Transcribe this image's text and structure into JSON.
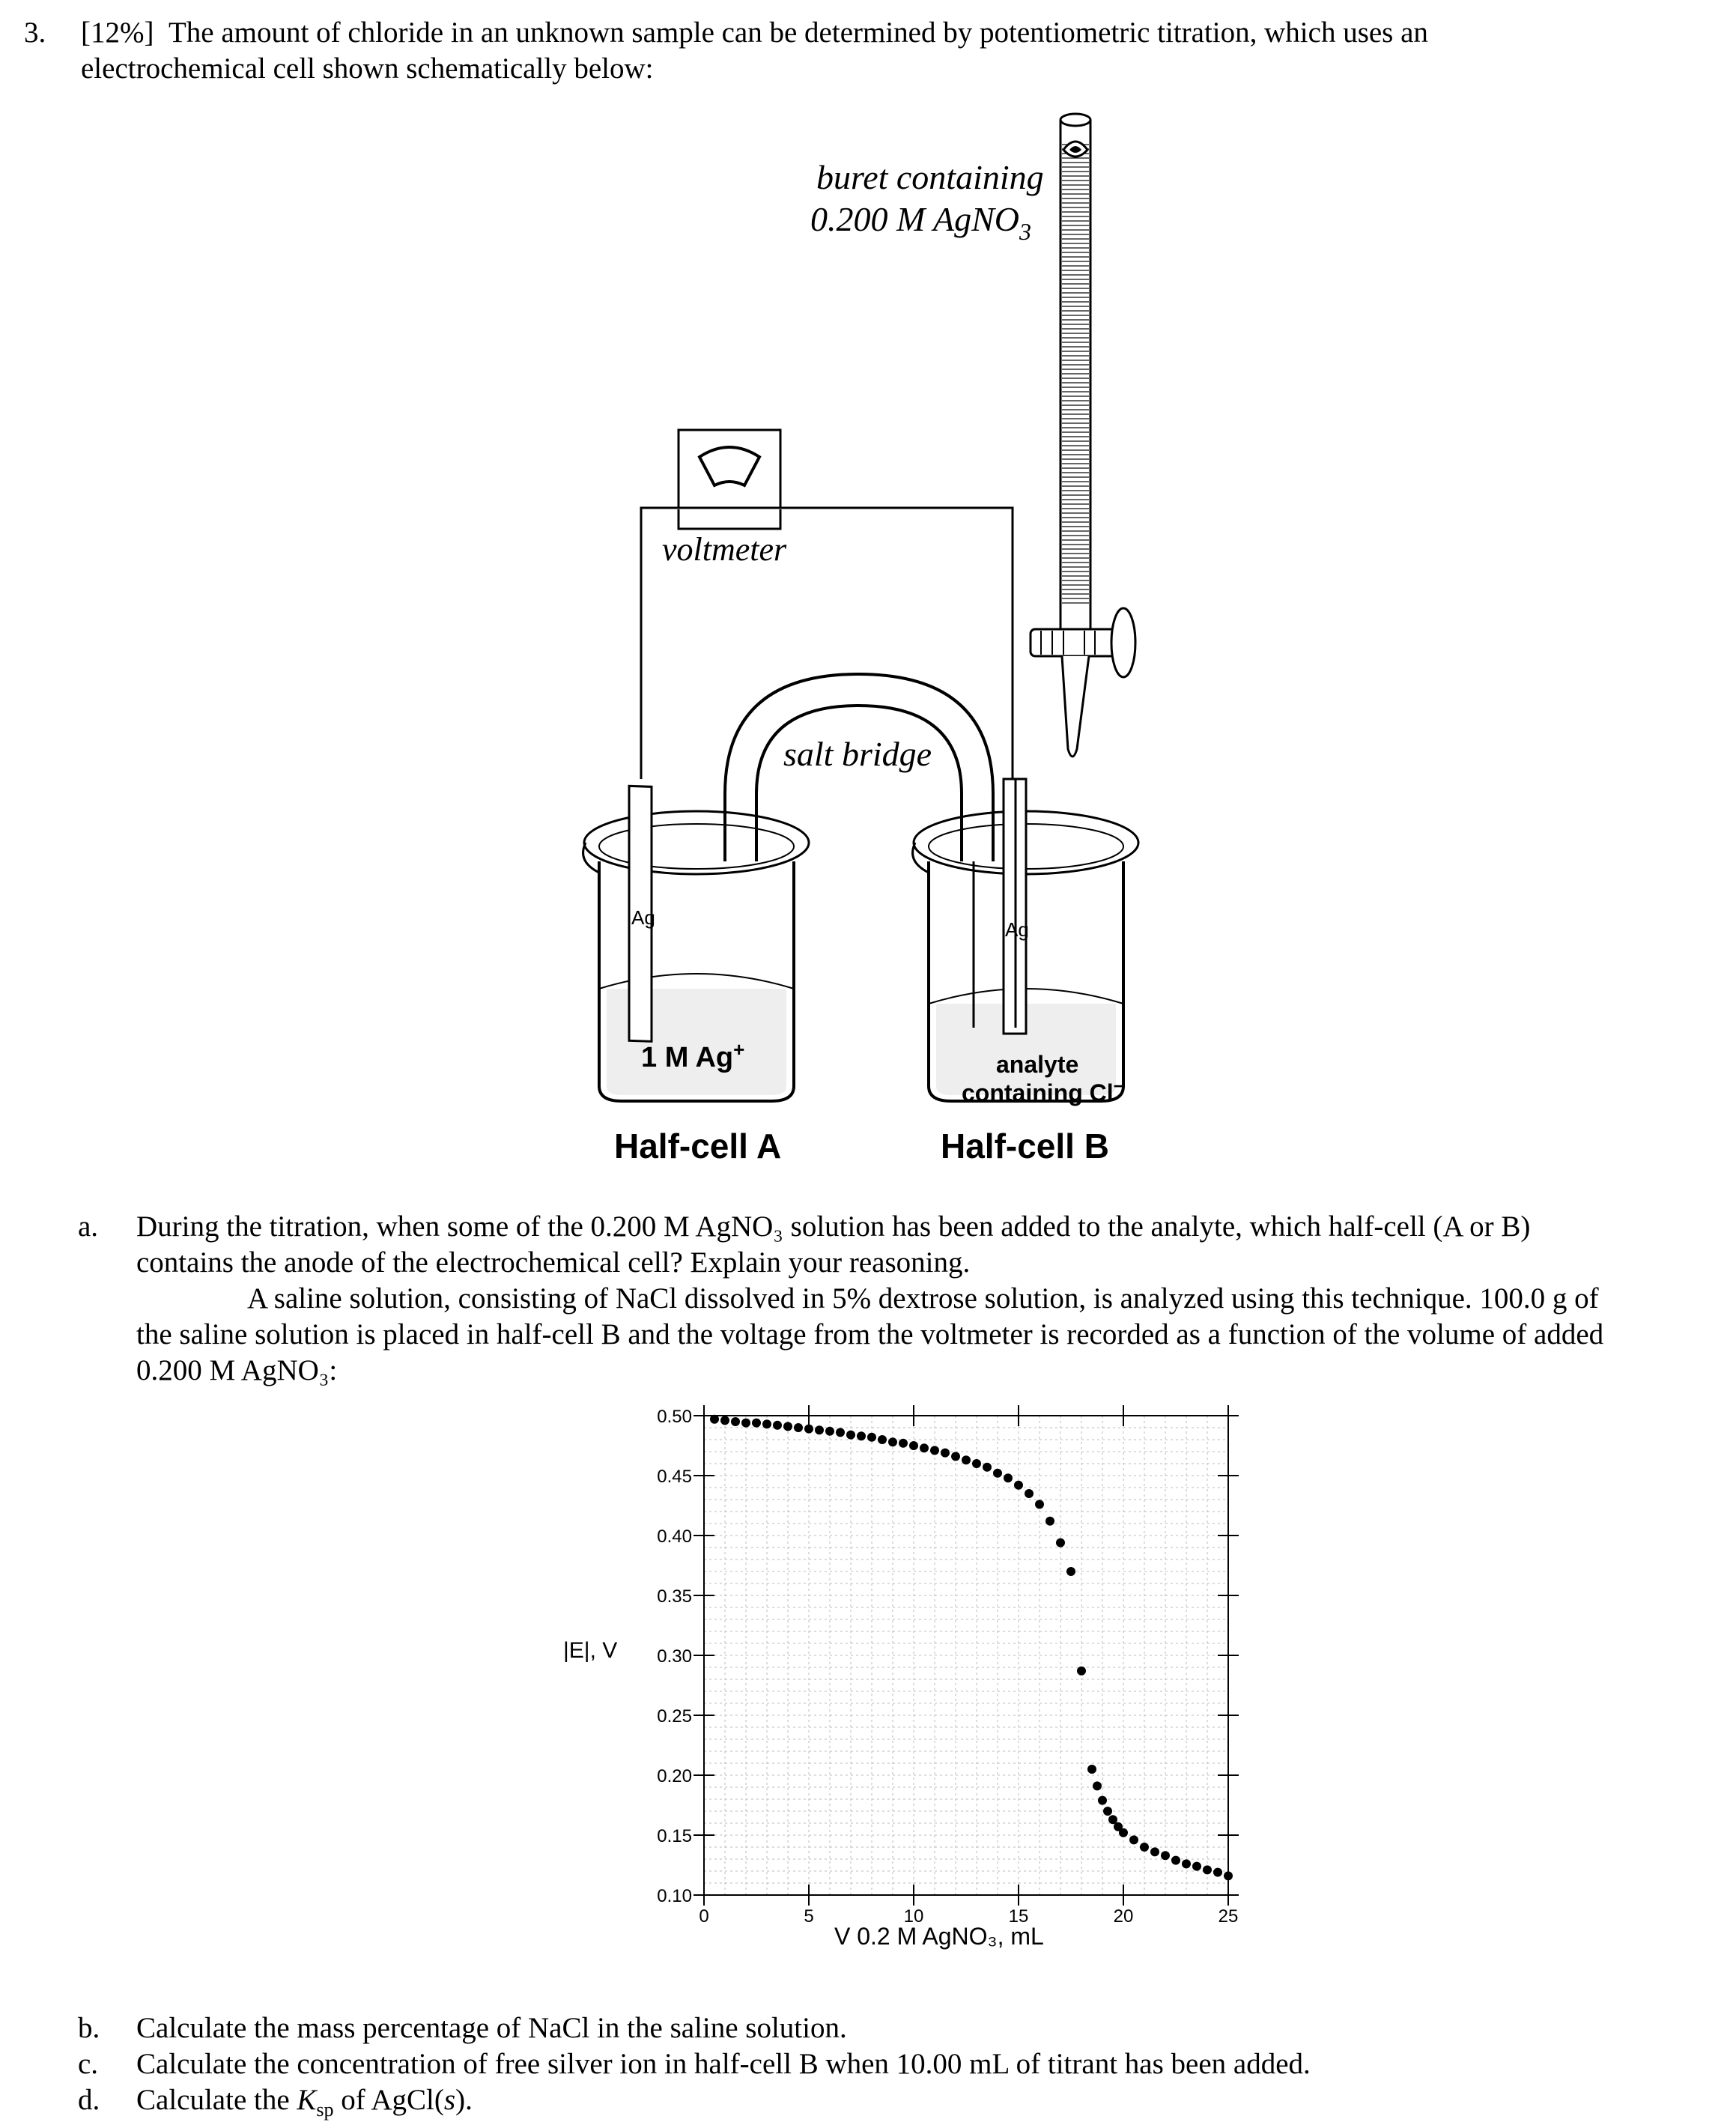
{
  "question": {
    "number": "3.",
    "weight": "[12%]",
    "intro_line1": "The amount of chloride in an unknown sample can be determined by potentiometric titration, which uses an",
    "intro_line2": "electrochemical cell shown schematically below:"
  },
  "diagram": {
    "buret_label_1": "buret containing",
    "buret_label_2": "0.200 M AgNO",
    "buret_label_sub": "3",
    "voltmeter_label": "voltmeter",
    "salt_bridge_label": "salt bridge",
    "electrode_a": "Ag",
    "electrode_b": "Ag",
    "solution_a": "1 M Ag",
    "solution_a_sup": "+",
    "solution_b_1": "analyte",
    "solution_b_2": "containing Cl",
    "solution_b_sup": "−",
    "halfcell_a": "Half-cell A",
    "halfcell_b": "Half-cell B"
  },
  "part_a": {
    "label": "a.",
    "line1": "During the titration, when some of the 0.200 M AgNO₃ solution has been added to the analyte, which half-cell (A or B)",
    "line2": "contains the anode of the electrochemical cell? Explain your reasoning.",
    "line3": "A saline solution, consisting of NaCl dissolved in 5% dextrose solution, is analyzed using this technique. 100.0 g of",
    "line4": "the saline solution is placed in half-cell B and the voltage from the voltmeter is recorded as a function of the volume of added",
    "line5": "0.200 M AgNO₃:"
  },
  "chart_data": {
    "type": "scatter",
    "xlabel": "V 0.2 M AgNO₃, mL",
    "ylabel": "|E|, V",
    "xlim": [
      0,
      25
    ],
    "ylim": [
      0.1,
      0.5
    ],
    "x_ticks": [
      "0",
      "5",
      "10",
      "15",
      "20",
      "25"
    ],
    "y_ticks": [
      "0.10",
      "0.15",
      "0.20",
      "0.25",
      "0.30",
      "0.35",
      "0.40",
      "0.45",
      "0.50"
    ],
    "grid": true,
    "series": [
      {
        "x": [
          0.5,
          1.0,
          1.5,
          2.0,
          2.5,
          3.0,
          3.5,
          4.0,
          4.5,
          5.0,
          5.5,
          6.0,
          6.5,
          7.0,
          7.5,
          8.0,
          8.5,
          9.0,
          9.5,
          10.0,
          10.5,
          11.0,
          11.5,
          12.0,
          12.5,
          13.0,
          13.5,
          14.0,
          14.5,
          15.0,
          15.5,
          16.0,
          16.5,
          17.0,
          17.5,
          18.0,
          18.5,
          18.75,
          19.0,
          19.25,
          19.5,
          19.75,
          20.0,
          20.5,
          21.0,
          21.5,
          22.0,
          22.5,
          23.0,
          23.5,
          24.0,
          24.5,
          25.0
        ],
        "y": [
          0.497,
          0.496,
          0.495,
          0.494,
          0.494,
          0.493,
          0.492,
          0.491,
          0.49,
          0.489,
          0.488,
          0.487,
          0.486,
          0.484,
          0.483,
          0.482,
          0.48,
          0.478,
          0.477,
          0.475,
          0.473,
          0.471,
          0.469,
          0.466,
          0.463,
          0.46,
          0.457,
          0.452,
          0.448,
          0.442,
          0.435,
          0.426,
          0.412,
          0.394,
          0.37,
          0.287,
          0.205,
          0.191,
          0.179,
          0.17,
          0.163,
          0.157,
          0.152,
          0.146,
          0.14,
          0.136,
          0.133,
          0.129,
          0.126,
          0.124,
          0.121,
          0.119,
          0.116
        ]
      }
    ]
  },
  "parts": [
    {
      "label": "b.",
      "text": "Calculate the mass percentage of NaCl in the saline solution."
    },
    {
      "label": "c.",
      "text": "Calculate the concentration of free silver ion in half-cell B when 10.00 mL of titrant has been added."
    },
    {
      "label": "d.",
      "text_pre": "Calculate the ",
      "ksp_k": "K",
      "ksp_sub": "sp",
      "text_post": " of AgCl(",
      "s": "s",
      "text_end": ")."
    }
  ]
}
